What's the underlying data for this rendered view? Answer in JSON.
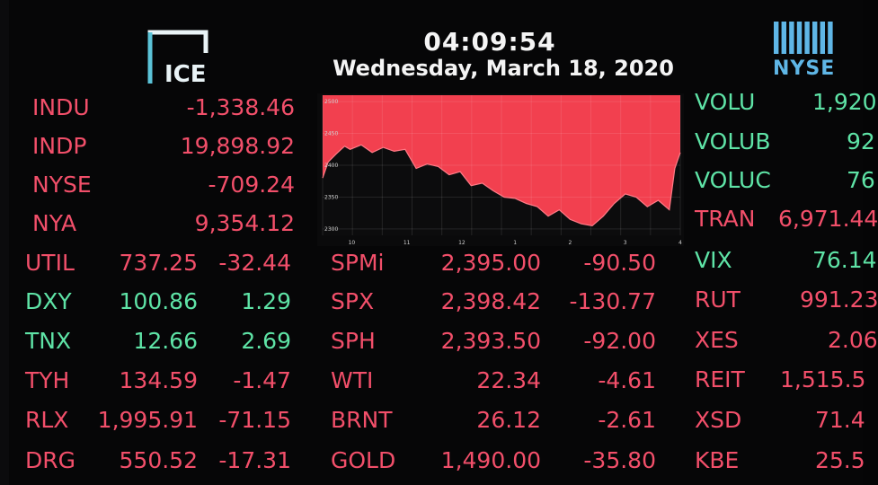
{
  "header": {
    "left_logo_text": "ICE",
    "time": "04:09:54",
    "date": "Wednesday, March 18, 2020",
    "right_logo_text": "NYSE"
  },
  "colors": {
    "negative": "#f24f6a",
    "positive": "#5ee3a6",
    "chart_fill": "#f2404f",
    "background": "#060607"
  },
  "left_top": [
    {
      "symbol": "INDU",
      "value": "-1,338.46"
    },
    {
      "symbol": "INDP",
      "value": "19,898.92"
    },
    {
      "symbol": "NYSE",
      "value": "-709.24"
    },
    {
      "symbol": "NYA",
      "value": "9,354.12"
    }
  ],
  "left_bottom": [
    {
      "symbol": "UTIL",
      "price": "737.25",
      "change": "-32.44"
    },
    {
      "symbol": "DXY",
      "price": "100.86",
      "change": "1.29"
    },
    {
      "symbol": "TNX",
      "price": "12.66",
      "change": "2.69"
    },
    {
      "symbol": "TYH",
      "price": "134.59",
      "change": "-1.47"
    },
    {
      "symbol": "RLX",
      "price": "1,995.91",
      "change": "-71.15"
    },
    {
      "symbol": "DRG",
      "price": "550.52",
      "change": "-17.31"
    }
  ],
  "middle": [
    {
      "symbol": "SPMi",
      "price": "2,395.00",
      "change": "-90.50"
    },
    {
      "symbol": "SPX",
      "price": "2,398.42",
      "change": "-130.77"
    },
    {
      "symbol": "SPH",
      "price": "2,393.50",
      "change": "-92.00"
    },
    {
      "symbol": "WTI",
      "price": "22.34",
      "change": "-4.61"
    },
    {
      "symbol": "BRNT",
      "price": "26.12",
      "change": "-2.61"
    },
    {
      "symbol": "GOLD",
      "price": "1,490.00",
      "change": "-35.80"
    }
  ],
  "right": [
    {
      "symbol": "VOLU",
      "value": "1,920"
    },
    {
      "symbol": "VOLUB",
      "value": "92"
    },
    {
      "symbol": "VOLUC",
      "value": "76"
    },
    {
      "symbol": "TRAN",
      "value": "6,971.44"
    },
    {
      "symbol": "VIX",
      "value": "76.14"
    },
    {
      "symbol": "RUT",
      "value": "991.23"
    },
    {
      "symbol": "XES",
      "value": "2.06"
    },
    {
      "symbol": "REIT",
      "value": "1,515.5"
    },
    {
      "symbol": "XSD",
      "value": "71.4"
    },
    {
      "symbol": "KBE",
      "value": "25.5"
    }
  ],
  "chart_data": {
    "type": "area",
    "y_tick_labels": [
      "2500",
      "2450",
      "2400",
      "2350",
      "2300"
    ],
    "x_tick_labels": [
      "10",
      "11",
      "12",
      "1",
      "2",
      "3",
      "4"
    ],
    "ylim": [
      2290,
      2510
    ],
    "x": [
      9.5,
      9.6,
      9.75,
      9.9,
      10.0,
      10.2,
      10.4,
      10.6,
      10.8,
      11.0,
      11.2,
      11.4,
      11.6,
      11.8,
      12.0,
      12.2,
      12.4,
      12.6,
      12.8,
      13.0,
      13.2,
      13.4,
      13.6,
      13.8,
      14.0,
      14.2,
      14.4,
      14.6,
      14.8,
      15.0,
      15.2,
      15.4,
      15.6,
      15.8,
      15.9,
      16.0
    ],
    "y": [
      2380,
      2405,
      2418,
      2430,
      2425,
      2432,
      2420,
      2428,
      2422,
      2425,
      2395,
      2402,
      2398,
      2385,
      2390,
      2368,
      2372,
      2360,
      2350,
      2348,
      2340,
      2335,
      2320,
      2330,
      2315,
      2308,
      2305,
      2320,
      2340,
      2355,
      2350,
      2335,
      2345,
      2330,
      2395,
      2420
    ]
  },
  "right_logo_bars": 8
}
